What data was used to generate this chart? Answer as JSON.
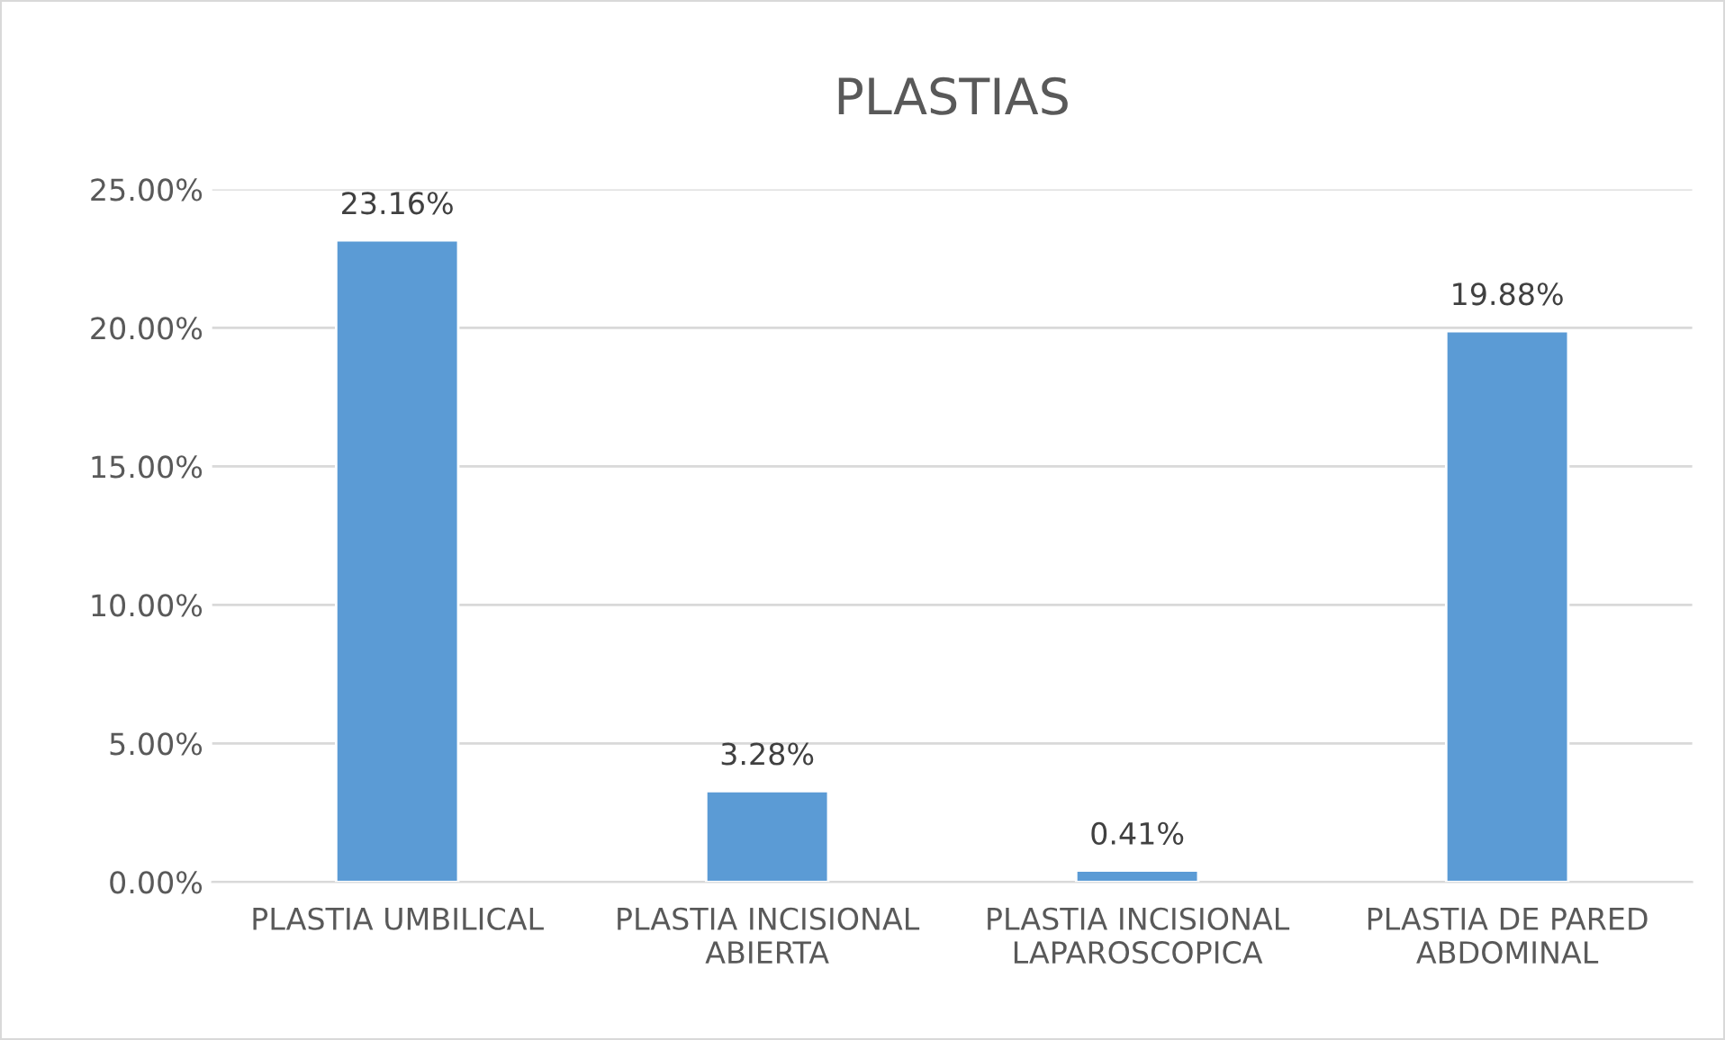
{
  "chart_data": {
    "type": "bar",
    "title": "PLASTIAS",
    "categories": [
      "PLASTIA UMBILICAL",
      "PLASTIA INCISIONAL\nABIERTA",
      "PLASTIA INCISIONAL\nLAPAROSCOPICA",
      "PLASTIA DE PARED\nABDOMINAL"
    ],
    "values": [
      23.16,
      3.28,
      0.41,
      19.88
    ],
    "value_labels": [
      "23.16%",
      "3.28%",
      "0.41%",
      "19.88%"
    ],
    "color": "#5b9bd5",
    "ylim": [
      0,
      25
    ],
    "yticks": [
      {
        "value": 0,
        "label": "0.00%"
      },
      {
        "value": 5,
        "label": "5.00%"
      },
      {
        "value": 10,
        "label": "10.00%"
      },
      {
        "value": 15,
        "label": "15.00%"
      },
      {
        "value": 20,
        "label": "20.00%"
      },
      {
        "value": 25,
        "label": "25.00%"
      }
    ],
    "grid": "y"
  }
}
